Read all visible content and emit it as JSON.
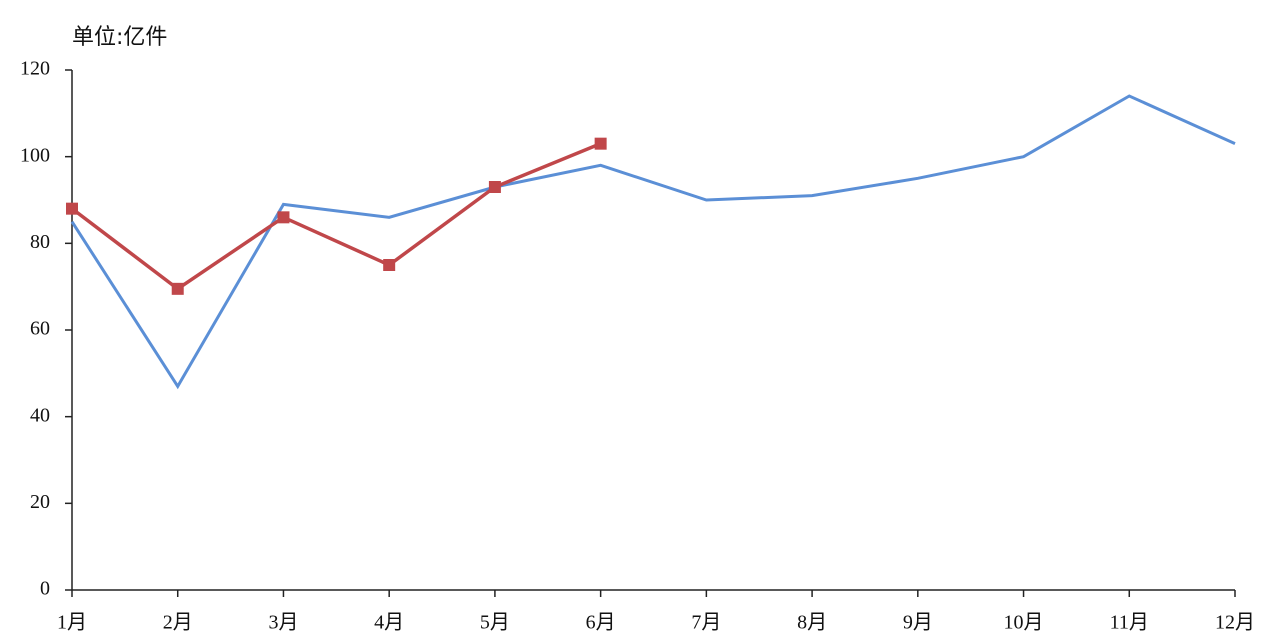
{
  "chart_data": {
    "type": "line",
    "unit_label": "单位:亿件",
    "categories": [
      "1月",
      "2月",
      "3月",
      "4月",
      "5月",
      "6月",
      "7月",
      "8月",
      "9月",
      "10月",
      "11月",
      "12月"
    ],
    "series": [
      {
        "color": "#5b8fd6",
        "values": [
          85,
          47,
          89,
          86,
          93,
          98,
          90,
          91,
          95,
          100,
          114,
          103
        ],
        "marker": "none"
      },
      {
        "color": "#c0474a",
        "values": [
          88,
          69.5,
          86,
          75,
          93,
          103,
          null,
          null,
          null,
          null,
          null,
          null
        ],
        "marker": "square"
      }
    ],
    "ylim": [
      0,
      120
    ],
    "yticks": [
      0,
      20,
      40,
      60,
      80,
      100,
      120
    ],
    "grid": false
  }
}
